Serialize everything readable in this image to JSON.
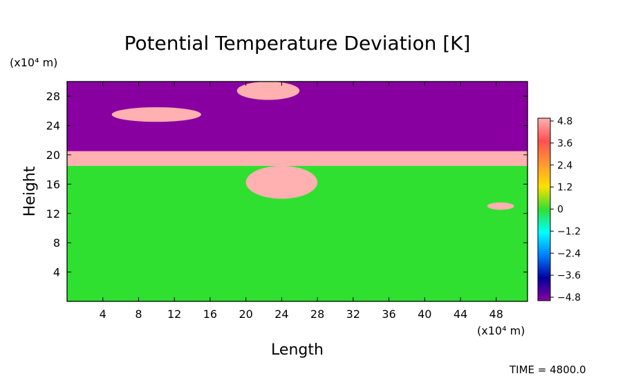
{
  "chart_data": {
    "type": "heatmap",
    "title": "Potential Temperature Deviation [K]",
    "xlabel": "Length",
    "ylabel": "Height",
    "x_unit_label": "(x10⁴ m)",
    "y_unit_label": "(x10⁴ m)",
    "x_ticks": [
      4,
      8,
      12,
      16,
      20,
      24,
      28,
      32,
      36,
      40,
      44,
      48
    ],
    "y_ticks": [
      4,
      8,
      12,
      16,
      20,
      24,
      28
    ],
    "xlim": [
      0,
      51.5
    ],
    "ylim": [
      0,
      30
    ],
    "colorbar": {
      "range": [
        -4.8,
        4.8
      ],
      "labels": [
        "4.8",
        "3.6",
        "2.4",
        "1.2",
        "0",
        "−1.2",
        "−2.4",
        "−3.6",
        "−4.8"
      ],
      "colors": [
        "#ffb0b0",
        "#ff5050",
        "#ff9830",
        "#ffe000",
        "#30e030",
        "#00ffff",
        "#0080ff",
        "#0000a0",
        "#8800a0"
      ]
    },
    "regions": [
      {
        "name": "lower layer",
        "value": 0.0,
        "x": [
          0,
          51.5
        ],
        "y": [
          0,
          18.5
        ]
      },
      {
        "name": "warm band",
        "value": 4.8,
        "x": [
          0,
          51.5
        ],
        "y": [
          18.5,
          20.5
        ]
      },
      {
        "name": "upper layer",
        "value": -4.8,
        "x": [
          0,
          51.5
        ],
        "y": [
          20.5,
          30
        ]
      },
      {
        "name": "warm lens",
        "value": 4.8,
        "x": [
          5,
          15
        ],
        "y": [
          24.5,
          26.5
        ]
      },
      {
        "name": "warm patch top",
        "value": 4.8,
        "x": [
          19,
          26
        ],
        "y": [
          27.5,
          30
        ]
      },
      {
        "name": "warm vortex",
        "value": 4.8,
        "x": [
          20,
          28
        ],
        "y": [
          14,
          18.5
        ]
      },
      {
        "name": "warm spot",
        "value": 4.8,
        "x": [
          47,
          50
        ],
        "y": [
          12.5,
          13.5
        ]
      }
    ]
  },
  "annotation": {
    "time": "TIME = 4800.0"
  }
}
